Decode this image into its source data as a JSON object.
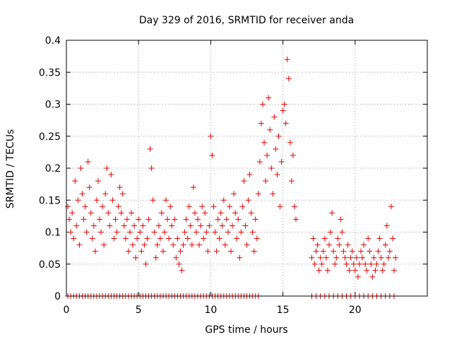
{
  "chart_data": {
    "type": "scatter",
    "title": "Day 329 of 2016, SRMTID for receiver anda",
    "xlabel": "GPS time / hours",
    "ylabel": "SRMTID / TECUs",
    "xlim": [
      0,
      25
    ],
    "ylim": [
      0,
      0.4
    ],
    "xticks": [
      "0",
      "5",
      "10",
      "15",
      "20"
    ],
    "yticks": [
      "0",
      "0.05",
      "0.1",
      "0.15",
      "0.2",
      "0.25",
      "0.3",
      "0.35",
      "0.4"
    ],
    "grid": true,
    "marker": "+",
    "color": "#e00000",
    "series": [
      {
        "name": "SRMTID",
        "points": [
          [
            0.1,
            0.14
          ],
          [
            0.2,
            0.12
          ],
          [
            0.3,
            0.1
          ],
          [
            0.4,
            0.13
          ],
          [
            0.5,
            0.09
          ],
          [
            0.6,
            0.18
          ],
          [
            0.7,
            0.11
          ],
          [
            0.8,
            0.15
          ],
          [
            0.9,
            0.08
          ],
          [
            1.0,
            0.2
          ],
          [
            1.1,
            0.16
          ],
          [
            1.2,
            0.12
          ],
          [
            1.3,
            0.14
          ],
          [
            1.4,
            0.1
          ],
          [
            1.5,
            0.21
          ],
          [
            1.6,
            0.17
          ],
          [
            1.7,
            0.13
          ],
          [
            1.8,
            0.09
          ],
          [
            1.9,
            0.11
          ],
          [
            2.0,
            0.07
          ],
          [
            2.1,
            0.15
          ],
          [
            2.2,
            0.18
          ],
          [
            2.3,
            0.12
          ],
          [
            2.4,
            0.1
          ],
          [
            2.5,
            0.14
          ],
          [
            2.6,
            0.08
          ],
          [
            2.7,
            0.16
          ],
          [
            2.8,
            0.2
          ],
          [
            2.9,
            0.13
          ],
          [
            3.0,
            0.11
          ],
          [
            3.1,
            0.19
          ],
          [
            3.2,
            0.15
          ],
          [
            3.3,
            0.09
          ],
          [
            3.4,
            0.12
          ],
          [
            3.5,
            0.1
          ],
          [
            3.6,
            0.14
          ],
          [
            3.7,
            0.17
          ],
          [
            3.8,
            0.13
          ],
          [
            3.9,
            0.16
          ],
          [
            4.0,
            0.11
          ],
          [
            4.1,
            0.09
          ],
          [
            4.2,
            0.12
          ],
          [
            4.3,
            0.07
          ],
          [
            4.4,
            0.1
          ],
          [
            4.5,
            0.13
          ],
          [
            4.6,
            0.08
          ],
          [
            4.7,
            0.11
          ],
          [
            4.8,
            0.06
          ],
          [
            4.9,
            0.09
          ],
          [
            5.0,
            0.12
          ],
          [
            5.1,
            0.1
          ],
          [
            5.2,
            0.07
          ],
          [
            5.3,
            0.11
          ],
          [
            5.4,
            0.08
          ],
          [
            5.5,
            0.05
          ],
          [
            5.6,
            0.09
          ],
          [
            5.7,
            0.12
          ],
          [
            5.8,
            0.23
          ],
          [
            5.9,
            0.2
          ],
          [
            6.0,
            0.15
          ],
          [
            6.1,
            0.1
          ],
          [
            6.2,
            0.06
          ],
          [
            6.3,
            0.08
          ],
          [
            6.4,
            0.11
          ],
          [
            6.5,
            0.09
          ],
          [
            6.6,
            0.13
          ],
          [
            6.7,
            0.07
          ],
          [
            6.8,
            0.1
          ],
          [
            6.9,
            0.15
          ],
          [
            7.0,
            0.12
          ],
          [
            7.1,
            0.09
          ],
          [
            7.2,
            0.14
          ],
          [
            7.3,
            0.11
          ],
          [
            7.4,
            0.08
          ],
          [
            7.5,
            0.12
          ],
          [
            7.6,
            0.06
          ],
          [
            7.7,
            0.09
          ],
          [
            7.8,
            0.05
          ],
          [
            7.9,
            0.07
          ],
          [
            8.0,
            0.04
          ],
          [
            8.1,
            0.08
          ],
          [
            8.2,
            0.1
          ],
          [
            8.3,
            0.12
          ],
          [
            8.4,
            0.09
          ],
          [
            8.5,
            0.14
          ],
          [
            8.6,
            0.11
          ],
          [
            8.7,
            0.08
          ],
          [
            8.8,
            0.17
          ],
          [
            8.9,
            0.13
          ],
          [
            9.0,
            0.1
          ],
          [
            9.1,
            0.12
          ],
          [
            9.2,
            0.08
          ],
          [
            9.3,
            0.11
          ],
          [
            9.4,
            0.14
          ],
          [
            9.5,
            0.09
          ],
          [
            9.6,
            0.13
          ],
          [
            9.7,
            0.1
          ],
          [
            9.8,
            0.07
          ],
          [
            9.9,
            0.11
          ],
          [
            10.0,
            0.25
          ],
          [
            10.1,
            0.22
          ],
          [
            10.2,
            0.14
          ],
          [
            10.3,
            0.1
          ],
          [
            10.4,
            0.07
          ],
          [
            10.5,
            0.12
          ],
          [
            10.6,
            0.09
          ],
          [
            10.7,
            0.13
          ],
          [
            10.8,
            0.11
          ],
          [
            10.9,
            0.15
          ],
          [
            11.0,
            0.08
          ],
          [
            11.1,
            0.12
          ],
          [
            11.2,
            0.1
          ],
          [
            11.3,
            0.14
          ],
          [
            11.4,
            0.07
          ],
          [
            11.5,
            0.11
          ],
          [
            11.6,
            0.16
          ],
          [
            11.7,
            0.13
          ],
          [
            11.8,
            0.09
          ],
          [
            11.9,
            0.12
          ],
          [
            12.0,
            0.06
          ],
          [
            12.1,
            0.1
          ],
          [
            12.2,
            0.14
          ],
          [
            12.3,
            0.18
          ],
          [
            12.4,
            0.11
          ],
          [
            12.5,
            0.08
          ],
          [
            12.6,
            0.15
          ],
          [
            12.7,
            0.19
          ],
          [
            12.8,
            0.13
          ],
          [
            12.9,
            0.1
          ],
          [
            13.0,
            0.07
          ],
          [
            13.1,
            0.12
          ],
          [
            13.2,
            0.09
          ],
          [
            13.3,
            0.16
          ],
          [
            13.4,
            0.21
          ],
          [
            13.5,
            0.27
          ],
          [
            13.6,
            0.3
          ],
          [
            13.7,
            0.24
          ],
          [
            13.8,
            0.18
          ],
          [
            13.9,
            0.22
          ],
          [
            14.0,
            0.31
          ],
          [
            14.1,
            0.26
          ],
          [
            14.2,
            0.2
          ],
          [
            14.3,
            0.16
          ],
          [
            14.4,
            0.28
          ],
          [
            14.5,
            0.23
          ],
          [
            14.6,
            0.19
          ],
          [
            14.7,
            0.25
          ],
          [
            14.8,
            0.14
          ],
          [
            14.9,
            0.21
          ],
          [
            15.0,
            0.29
          ],
          [
            15.1,
            0.3
          ],
          [
            15.2,
            0.27
          ],
          [
            15.3,
            0.37
          ],
          [
            15.4,
            0.34
          ],
          [
            15.5,
            0.24
          ],
          [
            15.6,
            0.18
          ],
          [
            15.7,
            0.22
          ],
          [
            15.8,
            0.14
          ],
          [
            15.9,
            0.12
          ],
          [
            17.0,
            0.06
          ],
          [
            17.1,
            0.09
          ],
          [
            17.2,
            0.05
          ],
          [
            17.3,
            0.07
          ],
          [
            17.4,
            0.08
          ],
          [
            17.5,
            0.04
          ],
          [
            17.6,
            0.06
          ],
          [
            17.7,
            0.05
          ],
          [
            17.8,
            0.07
          ],
          [
            17.9,
            0.09
          ],
          [
            18.0,
            0.06
          ],
          [
            18.1,
            0.04
          ],
          [
            18.2,
            0.08
          ],
          [
            18.3,
            0.1
          ],
          [
            18.4,
            0.13
          ],
          [
            18.5,
            0.07
          ],
          [
            18.6,
            0.05
          ],
          [
            18.7,
            0.06
          ],
          [
            18.8,
            0.09
          ],
          [
            18.9,
            0.08
          ],
          [
            19.0,
            0.12
          ],
          [
            19.1,
            0.1
          ],
          [
            19.2,
            0.07
          ],
          [
            19.3,
            0.06
          ],
          [
            19.4,
            0.05
          ],
          [
            19.5,
            0.08
          ],
          [
            19.6,
            0.04
          ],
          [
            19.7,
            0.06
          ],
          [
            19.8,
            0.07
          ],
          [
            19.9,
            0.05
          ],
          [
            20.0,
            0.04
          ],
          [
            20.1,
            0.06
          ],
          [
            20.2,
            0.03
          ],
          [
            20.3,
            0.05
          ],
          [
            20.4,
            0.07
          ],
          [
            20.5,
            0.06
          ],
          [
            20.6,
            0.08
          ],
          [
            20.7,
            0.05
          ],
          [
            20.8,
            0.04
          ],
          [
            20.9,
            0.09
          ],
          [
            21.0,
            0.07
          ],
          [
            21.1,
            0.05
          ],
          [
            21.2,
            0.03
          ],
          [
            21.3,
            0.06
          ],
          [
            21.4,
            0.04
          ],
          [
            21.5,
            0.05
          ],
          [
            21.6,
            0.07
          ],
          [
            21.7,
            0.09
          ],
          [
            21.8,
            0.06
          ],
          [
            21.9,
            0.04
          ],
          [
            22.0,
            0.05
          ],
          [
            22.1,
            0.08
          ],
          [
            22.2,
            0.11
          ],
          [
            22.3,
            0.06
          ],
          [
            22.4,
            0.07
          ],
          [
            22.5,
            0.14
          ],
          [
            22.6,
            0.09
          ],
          [
            22.7,
            0.04
          ],
          [
            22.8,
            0.06
          ]
        ],
        "zero_points_x": [
          0.1,
          0.3,
          0.5,
          0.7,
          0.9,
          1.1,
          1.3,
          1.5,
          1.7,
          1.9,
          2.1,
          2.3,
          2.5,
          2.7,
          2.9,
          3.1,
          3.3,
          3.5,
          3.7,
          3.9,
          4.1,
          4.3,
          4.5,
          4.7,
          4.9,
          5.1,
          5.3,
          5.5,
          5.7,
          5.9,
          6.1,
          6.3,
          6.5,
          6.7,
          6.9,
          7.1,
          7.3,
          7.5,
          7.7,
          7.9,
          8.1,
          8.3,
          8.5,
          8.7,
          8.9,
          9.1,
          9.3,
          9.5,
          9.7,
          9.9,
          10.1,
          10.3,
          10.5,
          10.7,
          10.9,
          11.1,
          11.3,
          11.5,
          11.7,
          11.9,
          12.1,
          12.3,
          12.5,
          12.7,
          12.9,
          13.1,
          13.3,
          17.0,
          17.3,
          17.6,
          17.9,
          18.2,
          18.5,
          18.8,
          19.1,
          19.4,
          19.7,
          20.0,
          20.3,
          20.6,
          20.9,
          21.2,
          21.5,
          21.8,
          22.1,
          22.4,
          22.7
        ]
      }
    ]
  }
}
